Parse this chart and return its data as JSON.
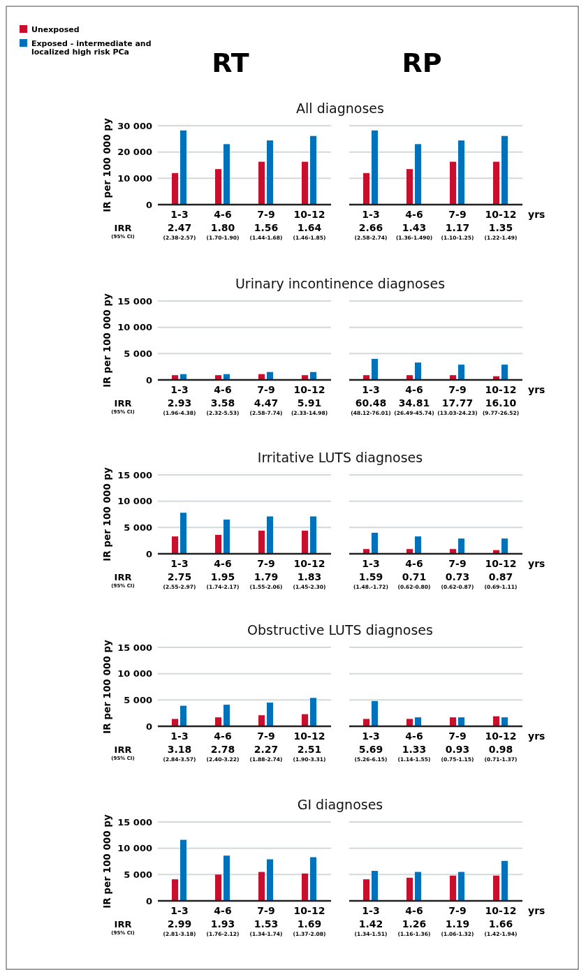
{
  "chart_data": [
    {
      "type": "bar",
      "title": "All diagnoses",
      "subtitle": "RT",
      "ylabel": "IR per 100 000 py",
      "legend": "top left",
      "categories": [
        "1-3",
        "4-6",
        "7-9",
        "10-12"
      ],
      "series": [
        {
          "name": "Unexposed",
          "color": "#c8102e",
          "values": [
            12000,
            13500,
            16300,
            16300
          ]
        },
        {
          "name": "Exposed - intermediate and localized high risk PCa",
          "color": "#0072bc",
          "values": [
            28200,
            23000,
            24400,
            26100
          ]
        }
      ],
      "ylim": [
        0,
        30000
      ],
      "yticks": [
        0,
        {
          "value": 10000,
          "label": "10 000"
        },
        {
          "value": 20000,
          "label": "20 000"
        },
        {
          "value": 30000,
          "label": "30 000"
        }
      ],
      "grid": "y",
      "annotations": [
        "IRR",
        "(95% CI)",
        "2.47",
        "(2.38-2.57)",
        "1.80",
        "(1.70-1.90)",
        "1.56",
        "(1.44-1.68)",
        "1.64",
        "(1.46-1.85)"
      ]
    },
    {
      "type": "bar",
      "subtitle": "RP",
      "xlabel": "yrs",
      "tick_labels": "x",
      "categories": [
        "1-3",
        "4-6",
        "7-9",
        "10-12"
      ],
      "series": [
        {
          "color": "#c8102e",
          "values": [
            12000,
            13500,
            16300,
            16300
          ]
        },
        {
          "color": "#0072bc",
          "values": [
            28200,
            23000,
            24400,
            26100
          ]
        }
      ],
      "ylim": [
        0,
        30000
      ],
      "yticks": [
        0,
        10000,
        20000,
        30000
      ],
      "grid": "y",
      "annotations": [
        "2.66",
        "(2.58-2.74)",
        "1.43",
        "(1.36-1.490)",
        "1.17",
        "(1.10-1.25)",
        "1.35",
        "(1.22-1.49)"
      ]
    },
    {
      "type": "bar",
      "title": "Urinary incontinence diagnoses",
      "ylabel": "IR per 100 000 py",
      "categories": [
        "1-3",
        "4-6",
        "7-9",
        "10-12"
      ],
      "series": [
        {
          "color": "#c8102e",
          "values": [
            900,
            900,
            1100,
            900
          ]
        },
        {
          "color": "#0072bc",
          "values": [
            1100,
            1100,
            1500,
            1500
          ]
        }
      ],
      "ylim": [
        0,
        15000
      ],
      "yticks": [
        0,
        {
          "value": 5000,
          "label": "5 000"
        },
        {
          "value": 10000,
          "label": "10 000"
        },
        {
          "value": 15000,
          "label": "15 000"
        }
      ],
      "grid": "y",
      "annotations": [
        "IRR",
        "(95% CI)",
        "2.93",
        "(1.96-4.38)",
        "3.58",
        "(2.32-5.53)",
        "4.47",
        "(2.58-7.74)",
        "5.91",
        "(2.33-14.98)"
      ]
    },
    {
      "type": "bar",
      "xlabel": "yrs",
      "tick_labels": "x",
      "categories": [
        "1-3",
        "4-6",
        "7-9",
        "10-12"
      ],
      "series": [
        {
          "color": "#c8102e",
          "values": [
            900,
            900,
            900,
            700
          ]
        },
        {
          "color": "#0072bc",
          "values": [
            4000,
            3300,
            2900,
            2900
          ]
        }
      ],
      "ylim": [
        0,
        15000
      ],
      "yticks": [
        0,
        5000,
        10000,
        15000
      ],
      "grid": "y",
      "annotations": [
        "60.48",
        "(48.12-76.01)",
        "34.81",
        "(26.49-45.74)",
        "17.77",
        "(13.03-24.23)",
        "16.10",
        "(9.77-26.52)"
      ]
    },
    {
      "type": "bar",
      "title": "Irritative LUTS diagnoses",
      "ylabel": "IR per 100 000 py",
      "categories": [
        "1-3",
        "4-6",
        "7-9",
        "10-12"
      ],
      "series": [
        {
          "color": "#c8102e",
          "values": [
            3300,
            3600,
            4400,
            4400
          ]
        },
        {
          "color": "#0072bc",
          "values": [
            7800,
            6500,
            7100,
            7100
          ]
        }
      ],
      "ylim": [
        0,
        15000
      ],
      "yticks": [
        0,
        {
          "value": 5000,
          "label": "5 000"
        },
        {
          "value": 10000,
          "label": "10 000"
        },
        {
          "value": 15000,
          "label": "15 000"
        }
      ],
      "grid": "y",
      "annotations": [
        "IRR",
        "(95% CI)",
        "2.75",
        "(2.55-2.97)",
        "1.95",
        "(1.74-2.17)",
        "1.79",
        "(1.55-2.06)",
        "1.83",
        "(1.45-2.30)"
      ]
    },
    {
      "type": "bar",
      "xlabel": "yrs",
      "tick_labels": "x",
      "categories": [
        "1-3",
        "4-6",
        "7-9",
        "10-12"
      ],
      "series": [
        {
          "color": "#c8102e",
          "values": [
            900,
            900,
            900,
            700
          ]
        },
        {
          "color": "#0072bc",
          "values": [
            4000,
            3300,
            2900,
            2900
          ]
        }
      ],
      "ylim": [
        0,
        15000
      ],
      "yticks": [
        0,
        5000,
        10000,
        15000
      ],
      "grid": "y",
      "annotations": [
        "1.59",
        "(1.48.-1.72)",
        "0.71",
        "(0.62-0.80)",
        "0.73",
        "(0.62-0.87)",
        "0.87",
        "(0.69-1.11)"
      ]
    },
    {
      "type": "bar",
      "title": "Obstructive LUTS diagnoses",
      "ylabel": "IR per 100 000 py",
      "categories": [
        "1-3",
        "4-6",
        "7-9",
        "10-12"
      ],
      "series": [
        {
          "color": "#c8102e",
          "values": [
            1400,
            1700,
            2100,
            2300
          ]
        },
        {
          "color": "#0072bc",
          "values": [
            3900,
            4100,
            4500,
            5400
          ]
        }
      ],
      "ylim": [
        0,
        15000
      ],
      "yticks": [
        0,
        {
          "value": 5000,
          "label": "5 000"
        },
        {
          "value": 10000,
          "label": "10 000"
        },
        {
          "value": 15000,
          "label": "15 000"
        }
      ],
      "grid": "y",
      "annotations": [
        "IRR",
        "(95% CI)",
        "3.18",
        "(2.84-3.57)",
        "2.78",
        "(2.40-3.22)",
        "2.27",
        "(1.88-2.74)",
        "2.51",
        "(1.90-3.31)"
      ]
    },
    {
      "type": "bar",
      "xlabel": "yrs",
      "tick_labels": "x",
      "categories": [
        "1-3",
        "4-6",
        "7-9",
        "10-12"
      ],
      "series": [
        {
          "color": "#c8102e",
          "values": [
            1400,
            1400,
            1700,
            1900
          ]
        },
        {
          "color": "#0072bc",
          "values": [
            4800,
            1700,
            1700,
            1700
          ]
        }
      ],
      "ylim": [
        0,
        15000
      ],
      "yticks": [
        0,
        5000,
        10000,
        15000
      ],
      "grid": "y",
      "annotations": [
        "5.69",
        "(5.26-6.15)",
        "1.33",
        "(1.14-1.55)",
        "0.93",
        "(0.75-1.15)",
        "0.98",
        "(0.71-1.37)"
      ]
    },
    {
      "type": "bar",
      "title": "GI diagnoses",
      "ylabel": "IR per 100 000 py",
      "categories": [
        "1-3",
        "4-6",
        "7-9",
        "10-12"
      ],
      "series": [
        {
          "color": "#c8102e",
          "values": [
            4100,
            5000,
            5500,
            5200
          ]
        },
        {
          "color": "#0072bc",
          "values": [
            11600,
            8600,
            7900,
            8300
          ]
        }
      ],
      "ylim": [
        0,
        15000
      ],
      "yticks": [
        0,
        {
          "value": 5000,
          "label": "5 000"
        },
        {
          "value": 10000,
          "label": "10 000"
        },
        {
          "value": 15000,
          "label": "15 000"
        }
      ],
      "grid": "y",
      "annotations": [
        "IRR",
        "(95% CI)",
        "2.99",
        "(2.81-3.18)",
        "1.93",
        "(1.76-2.12)",
        "1.53",
        "(1.34-1.74)",
        "1.69",
        "(1.37-2.08)"
      ]
    },
    {
      "type": "bar",
      "xlabel": "yrs",
      "tick_labels": "x",
      "categories": [
        "1-3",
        "4-6",
        "7-9",
        "10-12"
      ],
      "series": [
        {
          "color": "#c8102e",
          "values": [
            4100,
            4400,
            4800,
            4800
          ]
        },
        {
          "color": "#0072bc",
          "values": [
            5700,
            5500,
            5500,
            7600
          ]
        }
      ],
      "ylim": [
        0,
        15000
      ],
      "yticks": [
        0,
        5000,
        10000,
        15000
      ],
      "grid": "y",
      "annotations": [
        "1.42",
        "(1.34-1.51)",
        "1.26",
        "(1.16-1.36)",
        "1.19",
        "(1.06-1.32)",
        "1.66",
        "(1.42-1.94)"
      ]
    }
  ]
}
